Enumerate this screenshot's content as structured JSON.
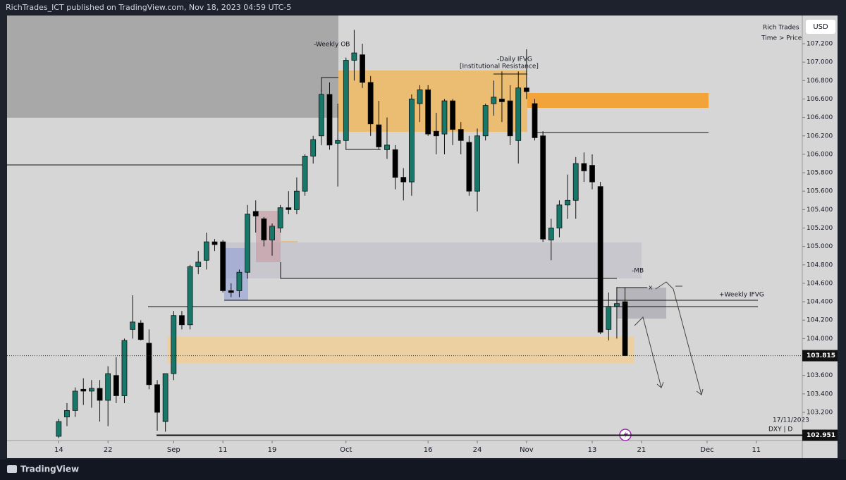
{
  "header": {
    "published": "RichTrades_ICT published on TradingView.com, Nov 18, 2023 04:59 UTC-5",
    "logo": "TradingView"
  },
  "chart_data": {
    "type": "candlestick",
    "symbol": "DXY | D",
    "date": "17/11/2023",
    "author": "Rich Trades",
    "motto": "Time > Price",
    "currency": "USD",
    "annotations": [
      "-Weekly OB",
      "-Daily IFVG",
      "[Institutional Resistance]",
      "-MB",
      "+Weekly IFVG",
      "x"
    ],
    "up_color": "#17786a",
    "down_color": "#000000",
    "candles": {
      "open": [
        102.94,
        103.15,
        103.22,
        103.45,
        103.43,
        103.46,
        103.33,
        103.6,
        103.38,
        104.1,
        104.17,
        103.95,
        103.5,
        103.1,
        103.62,
        104.25,
        104.15,
        104.78,
        104.85,
        105.05,
        105.05,
        104.52,
        104.52,
        104.72,
        105.38,
        105.3,
        105.07,
        105.2,
        105.42,
        105.4,
        105.6,
        105.98,
        106.2,
        106.65,
        106.12,
        106.15,
        107.02,
        107.08,
        106.78,
        106.32,
        106.05,
        106.05,
        105.75,
        105.7,
        106.55,
        106.7,
        106.25,
        106.22,
        106.58,
        106.27,
        106.13,
        105.6,
        106.2,
        106.55,
        106.6,
        106.58,
        106.15,
        106.72,
        106.55,
        106.2,
        105.07,
        105.2,
        105.45,
        105.5,
        105.9,
        105.88,
        105.65,
        104.1,
        104.35,
        104.4
      ],
      "high": [
        103.13,
        103.3,
        103.47,
        103.57,
        103.55,
        103.55,
        103.7,
        103.8,
        104.0,
        104.47,
        104.2,
        104.1,
        103.55,
        103.62,
        104.3,
        104.3,
        104.8,
        104.95,
        105.15,
        105.08,
        105.07,
        104.6,
        104.75,
        105.45,
        105.5,
        105.32,
        105.25,
        105.45,
        105.6,
        105.75,
        106.0,
        106.2,
        106.7,
        106.78,
        106.55,
        107.05,
        107.35,
        107.2,
        106.85,
        106.58,
        106.4,
        106.1,
        105.85,
        106.65,
        106.75,
        106.75,
        106.45,
        106.6,
        106.6,
        106.35,
        106.2,
        106.28,
        106.55,
        106.8,
        106.9,
        106.75,
        106.9,
        107.14,
        106.6,
        106.25,
        105.3,
        105.5,
        105.78,
        105.97,
        106.02,
        106.0,
        105.7,
        104.5,
        104.56,
        104.55
      ],
      "low": [
        102.92,
        103.05,
        103.15,
        103.28,
        103.25,
        103.1,
        103.05,
        103.3,
        103.3,
        104.0,
        103.98,
        103.45,
        103.0,
        102.99,
        103.55,
        104.1,
        104.1,
        104.7,
        104.75,
        104.95,
        104.5,
        104.45,
        104.45,
        104.65,
        105.15,
        105.0,
        104.9,
        105.15,
        105.35,
        105.35,
        105.55,
        105.9,
        106.1,
        106.05,
        105.65,
        106.05,
        106.8,
        106.72,
        106.2,
        106.05,
        105.95,
        105.62,
        105.5,
        105.55,
        106.35,
        106.2,
        106.0,
        106.0,
        106.1,
        106.0,
        105.55,
        105.38,
        106.15,
        106.42,
        106.35,
        106.1,
        105.9,
        106.6,
        106.15,
        105.05,
        104.85,
        105.1,
        105.3,
        105.3,
        105.7,
        105.62,
        104.05,
        103.98,
        104.0,
        103.81
      ],
      "close": [
        103.1,
        103.22,
        103.43,
        103.43,
        103.46,
        103.33,
        103.62,
        103.38,
        103.98,
        104.18,
        103.99,
        103.5,
        103.2,
        103.62,
        104.25,
        104.15,
        104.78,
        104.83,
        105.05,
        105.02,
        104.52,
        104.5,
        104.72,
        105.35,
        105.33,
        105.07,
        105.22,
        105.42,
        105.4,
        105.6,
        105.98,
        106.16,
        106.65,
        106.1,
        106.15,
        107.02,
        107.1,
        106.78,
        106.33,
        106.08,
        106.1,
        105.75,
        105.7,
        106.6,
        106.7,
        106.22,
        106.2,
        106.58,
        106.27,
        106.15,
        105.6,
        106.2,
        106.53,
        106.62,
        106.57,
        106.2,
        106.72,
        106.68,
        106.18,
        105.08,
        105.2,
        105.45,
        105.5,
        105.9,
        105.82,
        105.7,
        104.07,
        104.35,
        104.38,
        103.815
      ]
    },
    "last_price": 103.815,
    "level": 102.951,
    "ylim": [
      102.894,
      107.506
    ],
    "yticks": [
      {
        "value": 103.2,
        "label": "103.200"
      },
      {
        "value": 103.4,
        "label": "103.400"
      },
      {
        "value": 103.6,
        "label": "103.600"
      },
      {
        "value": 103.8,
        "label": "103.800"
      },
      {
        "value": 104.0,
        "label": "104.000"
      },
      {
        "value": 104.2,
        "label": "104.200"
      },
      {
        "value": 104.4,
        "label": "104.400"
      },
      {
        "value": 104.6,
        "label": "104.600"
      },
      {
        "value": 104.8,
        "label": "104.800"
      },
      {
        "value": 105.0,
        "label": "105.000"
      },
      {
        "value": 105.2,
        "label": "105.200"
      },
      {
        "value": 105.4,
        "label": "105.400"
      },
      {
        "value": 105.6,
        "label": "105.600"
      },
      {
        "value": 105.8,
        "label": "105.800"
      },
      {
        "value": 106.0,
        "label": "106.000"
      },
      {
        "value": 106.2,
        "label": "106.200"
      },
      {
        "value": 106.4,
        "label": "106.400"
      },
      {
        "value": 106.6,
        "label": "106.600"
      },
      {
        "value": 106.8,
        "label": "106.800"
      },
      {
        "value": 107.0,
        "label": "107.000"
      },
      {
        "value": 107.2,
        "label": "107.200"
      }
    ],
    "xlim": [
      -6.3,
      90.6
    ],
    "xticks": [
      {
        "value": 0,
        "label": "14"
      },
      {
        "value": 6,
        "label": "22"
      },
      {
        "value": 14,
        "label": "Sep"
      },
      {
        "value": 20,
        "label": "11"
      },
      {
        "value": 26,
        "label": "19"
      },
      {
        "value": 35,
        "label": "Oct"
      },
      {
        "value": 45,
        "label": "16"
      },
      {
        "value": 51,
        "label": "24"
      },
      {
        "value": 57,
        "label": "Nov"
      },
      {
        "value": 65,
        "label": "13"
      },
      {
        "value": 71,
        "label": "21"
      },
      {
        "value": 79,
        "label": "Dec"
      },
      {
        "value": 85,
        "label": "11"
      }
    ]
  }
}
